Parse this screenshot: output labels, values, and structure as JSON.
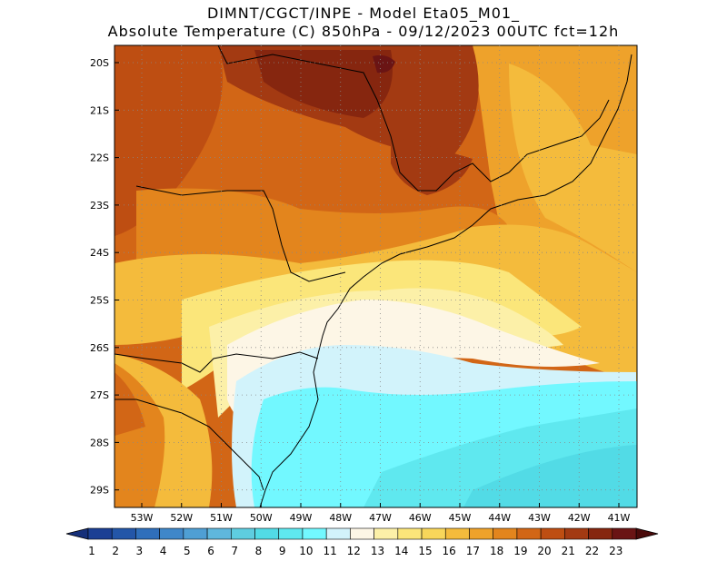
{
  "title": {
    "line1": "DIMNT/CGCT/INPE  -   Model Eta05_M01_",
    "line2": "Absolute Temperature (C) 850hPa  -   09/12/2023 00UTC fct=12h"
  },
  "map": {
    "lat_labels": [
      "20S",
      "21S",
      "22S",
      "23S",
      "24S",
      "25S",
      "26S",
      "27S",
      "28S",
      "29S"
    ],
    "lon_labels": [
      "53W",
      "52W",
      "51W",
      "50W",
      "49W",
      "48W",
      "47W",
      "46W",
      "45W",
      "44W",
      "43W",
      "42W",
      "41W"
    ]
  },
  "colorbar": {
    "labels": [
      "1",
      "2",
      "3",
      "4",
      "5",
      "6",
      "7",
      "8",
      "9",
      "10",
      "11",
      "12",
      "13",
      "14",
      "15",
      "16",
      "17",
      "18",
      "19",
      "20",
      "21",
      "22",
      "23"
    ],
    "colors": [
      "#1b3f94",
      "#2356a8",
      "#2f6fbb",
      "#3f87c9",
      "#4f9fd4",
      "#5fb7dd",
      "#5ecde0",
      "#52dbe6",
      "#5fe8ef",
      "#72f8ff",
      "#d2f3fb",
      "#fdf6e6",
      "#fcf0a8",
      "#fbe67a",
      "#f8d65a",
      "#f4bb3c",
      "#eea22b",
      "#e3851d",
      "#d26616",
      "#be4e12",
      "#a33a12",
      "#86260f",
      "#6a1414"
    ],
    "under_color": "#16307a",
    "over_color": "#4a0a0a"
  }
}
